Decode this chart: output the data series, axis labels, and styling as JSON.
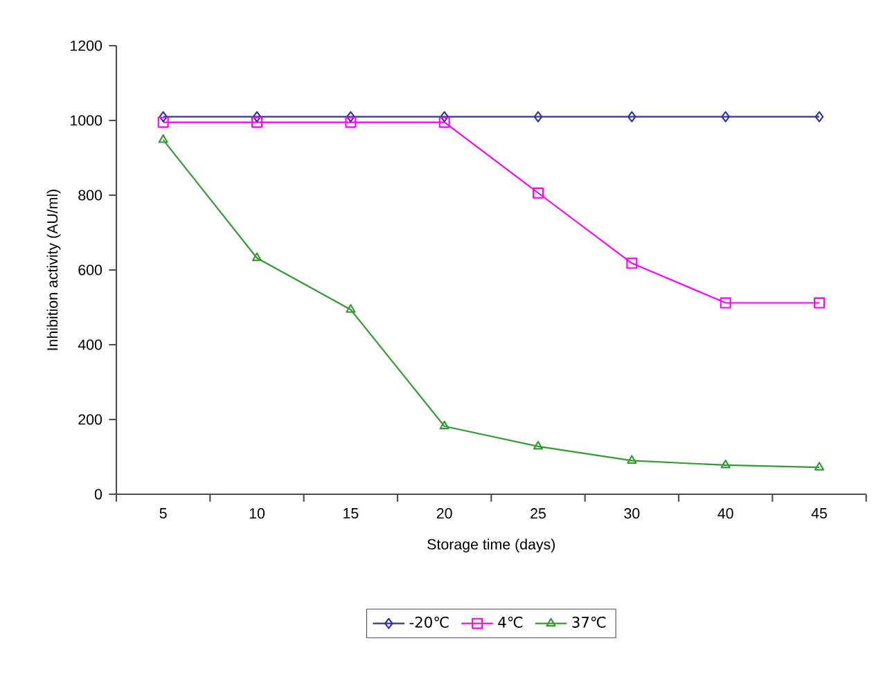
{
  "chart_data": {
    "type": "line",
    "xlabel": "Storage time (days)",
    "ylabel": "Inhibition activity (AU/ml)",
    "categories": [
      "5",
      "10",
      "15",
      "20",
      "25",
      "30",
      "40",
      "45"
    ],
    "series": [
      {
        "name": "-20℃",
        "color": "#333399",
        "marker": "diamond",
        "values": [
          1010,
          1010,
          1010,
          1010,
          1010,
          1010,
          1010,
          1010
        ]
      },
      {
        "name": "4℃",
        "color": "#ff00ff",
        "marker": "square",
        "values": [
          995,
          995,
          995,
          995,
          806,
          618,
          512,
          512
        ]
      },
      {
        "name": "37℃",
        "color": "#339933",
        "marker": "triangle",
        "values": [
          948,
          632,
          494,
          182,
          128,
          90,
          78,
          72
        ]
      }
    ],
    "ylim": [
      0,
      1200
    ],
    "yticks": [
      0,
      200,
      400,
      600,
      800,
      1000,
      1200
    ],
    "grid": false,
    "legend": "bottom",
    "line_style": "solid"
  }
}
